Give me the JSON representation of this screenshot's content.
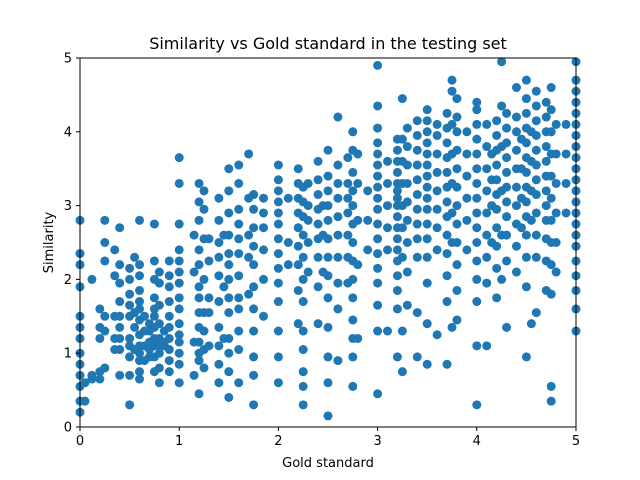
{
  "chart_data": {
    "type": "scatter",
    "title": "Similarity vs Gold standard in the testing set",
    "xlabel": "Gold standard",
    "ylabel": "Similarity",
    "xlim": [
      0,
      5
    ],
    "ylim": [
      0,
      5
    ],
    "xticks": [
      "0",
      "1",
      "2",
      "3",
      "4",
      "5"
    ],
    "yticks": [
      "0",
      "1",
      "2",
      "3",
      "4",
      "5"
    ],
    "grid": false,
    "legend": "none",
    "marker_color": "#1f77b4",
    "columns": [
      {
        "x": 0.0,
        "points": [
          0.2,
          0.35,
          0.55,
          0.7,
          0.85,
          1.0,
          1.2,
          1.35,
          1.5,
          1.9,
          2.2,
          2.35,
          2.8
        ]
      },
      {
        "x": 0.05,
        "points": [
          0.35,
          0.6
        ]
      },
      {
        "x": 0.12,
        "points": [
          0.65,
          0.7,
          2.0
        ]
      },
      {
        "x": 0.2,
        "points": [
          0.65,
          0.75,
          1.2,
          1.35,
          1.6
        ]
      },
      {
        "x": 0.25,
        "points": [
          0.8,
          1.3,
          1.5,
          2.25,
          2.5,
          2.8
        ]
      },
      {
        "x": 0.35,
        "points": [
          1.05,
          1.2,
          1.5,
          2.05,
          2.4
        ]
      },
      {
        "x": 0.4,
        "points": [
          0.7,
          1.05,
          1.2,
          1.35,
          1.5,
          1.7,
          1.95,
          2.2,
          2.7
        ]
      },
      {
        "x": 0.5,
        "points": [
          0.3,
          0.7,
          0.95,
          1.1,
          1.2,
          1.5,
          1.65,
          1.8,
          2.0,
          2.15
        ]
      },
      {
        "x": 0.55,
        "points": [
          1.05,
          1.35,
          1.55,
          2.3
        ]
      },
      {
        "x": 0.6,
        "points": [
          0.65,
          0.75,
          0.9,
          1.0,
          1.1,
          1.25,
          1.45,
          1.6,
          1.7,
          1.85,
          2.05,
          2.2,
          2.8
        ]
      },
      {
        "x": 0.65,
        "points": [
          0.9,
          1.1,
          1.3,
          1.5
        ]
      },
      {
        "x": 0.7,
        "points": [
          0.95,
          1.05,
          1.15,
          1.3,
          1.4
        ]
      },
      {
        "x": 0.75,
        "points": [
          0.75,
          0.95,
          1.1,
          1.2,
          1.35,
          1.5,
          1.6,
          1.75,
          2.0,
          2.25,
          2.75
        ]
      },
      {
        "x": 0.8,
        "points": [
          0.6,
          0.8,
          1.0,
          1.1,
          1.2,
          1.4,
          1.65,
          1.95,
          2.1
        ]
      },
      {
        "x": 0.85,
        "points": [
          1.1,
          1.15,
          1.3
        ]
      },
      {
        "x": 0.9,
        "points": [
          0.75,
          0.9,
          1.05,
          1.2,
          1.35,
          1.5,
          1.7,
          1.9,
          2.05,
          2.25
        ]
      },
      {
        "x": 1.0,
        "points": [
          0.6,
          0.85,
          1.0,
          1.15,
          1.25,
          1.4,
          1.6,
          1.75,
          1.95,
          2.1,
          2.25,
          2.4,
          2.75,
          3.3,
          3.65
        ]
      },
      {
        "x": 1.15,
        "points": [
          0.7,
          1.15,
          2.1,
          2.6
        ]
      },
      {
        "x": 1.2,
        "points": [
          0.45,
          0.9,
          1.0,
          1.15,
          1.35,
          1.55,
          1.75,
          1.9,
          2.2,
          2.4,
          2.8,
          3.05,
          3.3
        ]
      },
      {
        "x": 1.25,
        "points": [
          0.8,
          1.05,
          1.3,
          1.55,
          2.0,
          2.55,
          2.95,
          3.2
        ]
      },
      {
        "x": 1.3,
        "points": [
          1.1,
          1.55,
          1.75,
          2.25,
          2.55
        ]
      },
      {
        "x": 1.4,
        "points": [
          0.6,
          0.85,
          1.1,
          1.35,
          1.7,
          2.05,
          2.3,
          2.5,
          2.8,
          3.1
        ]
      },
      {
        "x": 1.45,
        "points": [
          1.2,
          1.9,
          2.6
        ]
      },
      {
        "x": 1.5,
        "points": [
          0.4,
          0.75,
          1.0,
          1.2,
          1.55,
          1.75,
          2.0,
          2.2,
          2.35,
          2.6,
          2.9,
          3.2,
          3.5
        ]
      },
      {
        "x": 1.6,
        "points": [
          0.6,
          1.05,
          1.3,
          1.6,
          1.75,
          2.05,
          2.35,
          2.55,
          2.75,
          2.95,
          3.3,
          3.55
        ]
      },
      {
        "x": 1.7,
        "points": [
          1.8,
          2.3,
          2.6,
          3.1,
          3.7
        ]
      },
      {
        "x": 1.75,
        "points": [
          0.3,
          0.7,
          0.95,
          1.3,
          1.6,
          1.9,
          2.2,
          2.45,
          2.7,
          2.95,
          3.15
        ]
      },
      {
        "x": 1.85,
        "points": [
          1.5,
          2.0,
          2.4,
          2.7,
          2.9,
          3.1
        ]
      },
      {
        "x": 2.0,
        "points": [
          0.6,
          0.95,
          1.3,
          1.7,
          1.95,
          2.15,
          2.35,
          2.55,
          2.75,
          2.9,
          3.05,
          3.2,
          3.35,
          3.55
        ]
      },
      {
        "x": 2.1,
        "points": [
          2.2,
          2.5,
          3.1
        ]
      },
      {
        "x": 2.2,
        "points": [
          1.4,
          1.85,
          2.2,
          2.45,
          2.7,
          2.9,
          3.1,
          3.3,
          3.5
        ]
      },
      {
        "x": 2.25,
        "points": [
          0.3,
          0.55,
          0.75,
          1.05,
          1.3,
          1.7,
          2.0,
          2.3,
          2.6,
          2.85,
          3.05,
          3.25
        ]
      },
      {
        "x": 2.3,
        "points": [
          2.1,
          2.5,
          2.8,
          3.0,
          3.3
        ]
      },
      {
        "x": 2.4,
        "points": [
          1.4,
          1.9,
          2.3,
          2.55,
          2.75,
          2.95,
          3.15,
          3.35,
          3.6
        ]
      },
      {
        "x": 2.45,
        "points": [
          2.1,
          2.6,
          3.0
        ]
      },
      {
        "x": 2.5,
        "points": [
          0.15,
          0.6,
          0.95,
          1.35,
          1.75,
          2.05,
          2.3,
          2.55,
          2.8,
          3.0,
          3.2,
          3.4,
          3.75
        ]
      },
      {
        "x": 2.6,
        "points": [
          0.9,
          1.6,
          1.95,
          2.3,
          2.6,
          2.85,
          3.1,
          3.3,
          3.55,
          4.2
        ]
      },
      {
        "x": 2.7,
        "points": [
          1.95,
          2.3,
          2.6,
          2.9,
          3.1,
          3.3,
          3.65
        ]
      },
      {
        "x": 2.75,
        "points": [
          0.55,
          0.95,
          1.2,
          1.45,
          1.75,
          2.0,
          2.25,
          2.5,
          2.75,
          3.0,
          3.2,
          3.45,
          3.75,
          4.0
        ]
      },
      {
        "x": 2.8,
        "points": [
          1.2,
          2.2,
          2.8,
          3.3,
          3.7
        ]
      },
      {
        "x": 2.9,
        "points": [
          2.4,
          2.8,
          3.2
        ]
      },
      {
        "x": 3.0,
        "points": [
          0.45,
          1.3,
          1.65,
          1.95,
          2.15,
          2.35,
          2.55,
          2.75,
          2.95,
          3.1,
          3.25,
          3.4,
          3.55,
          3.7,
          3.85,
          4.05,
          4.35,
          4.9
        ]
      },
      {
        "x": 3.1,
        "points": [
          1.3,
          2.4,
          2.7,
          3.0,
          3.3,
          3.6
        ]
      },
      {
        "x": 3.2,
        "points": [
          0.95,
          1.6,
          1.85,
          2.05,
          2.25,
          2.4,
          2.55,
          2.7,
          2.85,
          3.0,
          3.1,
          3.2,
          3.3,
          3.45,
          3.6,
          3.75,
          3.9
        ]
      },
      {
        "x": 3.25,
        "points": [
          0.75,
          1.3,
          2.3,
          2.7,
          3.0,
          3.3,
          3.6,
          3.9,
          4.45
        ]
      },
      {
        "x": 3.3,
        "points": [
          1.65,
          2.1,
          2.5,
          2.8,
          3.05,
          3.3,
          3.55,
          3.8,
          4.05
        ]
      },
      {
        "x": 3.4,
        "points": [
          0.95,
          1.55,
          2.3,
          2.55,
          2.75,
          2.95,
          3.15,
          3.35,
          3.55,
          3.75,
          3.95,
          4.15
        ]
      },
      {
        "x": 3.5,
        "points": [
          0.85,
          1.4,
          1.95,
          2.3,
          2.55,
          2.75,
          2.95,
          3.1,
          3.25,
          3.4,
          3.55,
          3.7,
          3.85,
          4.0,
          4.15,
          4.3
        ]
      },
      {
        "x": 3.6,
        "points": [
          1.25,
          2.4,
          2.7,
          2.95,
          3.2,
          3.45,
          3.7,
          3.95,
          4.1
        ]
      },
      {
        "x": 3.7,
        "points": [
          0.85,
          1.7,
          2.05,
          2.35,
          2.6,
          2.85,
          3.05,
          3.25,
          3.45,
          3.65,
          3.85,
          4.05,
          4.25
        ]
      },
      {
        "x": 3.75,
        "points": [
          1.35,
          2.5,
          2.9,
          3.3,
          3.7,
          4.1,
          4.55,
          4.7
        ]
      },
      {
        "x": 3.8,
        "points": [
          1.45,
          1.85,
          2.2,
          2.5,
          2.75,
          3.0,
          3.25,
          3.5,
          3.75,
          4.0,
          4.2,
          4.45
        ]
      },
      {
        "x": 3.9,
        "points": [
          2.4,
          2.8,
          3.1,
          3.4,
          3.7,
          4.0
        ]
      },
      {
        "x": 4.0,
        "points": [
          0.3,
          1.1,
          1.7,
          2.0,
          2.25,
          2.5,
          2.7,
          2.9,
          3.1,
          3.3,
          3.5,
          3.7,
          3.9,
          4.1,
          4.3,
          4.4
        ]
      },
      {
        "x": 4.1,
        "points": [
          1.1,
          1.95,
          2.3,
          2.6,
          2.9,
          3.2,
          3.5,
          3.8,
          4.1
        ]
      },
      {
        "x": 4.15,
        "points": [
          2.5,
          3.0,
          3.35,
          3.7
        ]
      },
      {
        "x": 4.2,
        "points": [
          1.75,
          2.15,
          2.45,
          2.7,
          2.95,
          3.15,
          3.35,
          3.55,
          3.75,
          3.95,
          4.15
        ]
      },
      {
        "x": 4.25,
        "points": [
          2.0,
          2.6,
          3.2,
          3.8,
          4.35,
          4.95
        ]
      },
      {
        "x": 4.3,
        "points": [
          1.35,
          2.25,
          2.6,
          2.85,
          3.05,
          3.25,
          3.45,
          3.65,
          3.85,
          4.05,
          4.25
        ]
      },
      {
        "x": 4.4,
        "points": [
          2.1,
          2.45,
          2.75,
          3.0,
          3.25,
          3.5,
          3.75,
          4.0,
          4.2,
          4.6
        ]
      },
      {
        "x": 4.45,
        "points": [
          2.7,
          3.1,
          3.5,
          3.9
        ]
      },
      {
        "x": 4.5,
        "points": [
          0.95,
          1.9,
          2.3,
          2.6,
          2.85,
          3.05,
          3.25,
          3.45,
          3.65,
          3.85,
          4.05,
          4.25,
          4.45,
          4.7
        ]
      },
      {
        "x": 4.55,
        "points": [
          1.4,
          2.8,
          3.2,
          3.6,
          4.0
        ]
      },
      {
        "x": 4.6,
        "points": [
          1.55,
          2.3,
          2.6,
          2.9,
          3.15,
          3.35,
          3.55,
          3.75,
          3.95,
          4.15,
          4.35,
          4.55
        ]
      },
      {
        "x": 4.7,
        "points": [
          1.85,
          2.25,
          2.55,
          2.8,
          3.0,
          3.2,
          3.4,
          3.6,
          3.8,
          4.0,
          4.2,
          4.4
        ]
      },
      {
        "x": 4.75,
        "points": [
          0.35,
          0.55,
          1.8,
          2.2,
          2.5,
          2.8,
          3.1,
          3.4,
          3.7,
          4.0,
          4.3,
          4.6
        ]
      },
      {
        "x": 4.8,
        "points": [
          2.1,
          2.5,
          2.9,
          3.3,
          3.7,
          4.1
        ]
      },
      {
        "x": 4.9,
        "points": [
          2.9,
          3.3,
          3.7,
          4.1
        ]
      },
      {
        "x": 5.0,
        "points": [
          1.3,
          1.6,
          1.85,
          2.05,
          2.25,
          2.45,
          2.6,
          2.75,
          2.9,
          3.05,
          3.2,
          3.35,
          3.5,
          3.65,
          3.8,
          3.95,
          4.1,
          4.25,
          4.4,
          4.55,
          4.7,
          4.95
        ]
      }
    ]
  }
}
